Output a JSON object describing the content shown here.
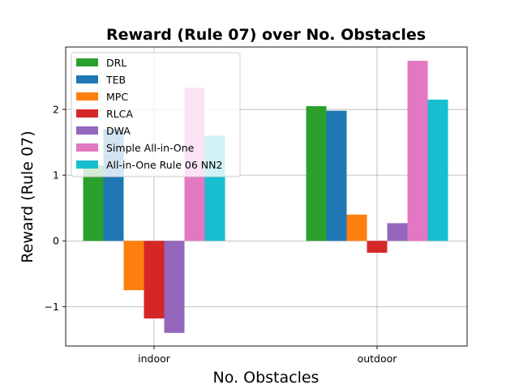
{
  "chart_data": {
    "type": "bar",
    "title": "Reward (Rule 07) over No. Obstacles",
    "xlabel": "No. Obstacles",
    "ylabel": "Reward (Rule 07)",
    "categories": [
      "indoor",
      "outdoor"
    ],
    "ylim": [
      -1.6,
      2.95
    ],
    "yticks": [
      -1,
      0,
      1,
      2
    ],
    "ytick_labels": [
      "−1",
      "0",
      "1",
      "2"
    ],
    "grid": true,
    "legend_position": "top-left",
    "series": [
      {
        "name": "DRL",
        "color": "#2ca02c",
        "values": [
          1.15,
          2.05
        ]
      },
      {
        "name": "TEB",
        "color": "#1f77b4",
        "values": [
          1.7,
          1.98
        ]
      },
      {
        "name": "MPC",
        "color": "#ff7f0e",
        "values": [
          -0.75,
          0.4
        ]
      },
      {
        "name": "RLCA",
        "color": "#d62728",
        "values": [
          -1.18,
          -0.18
        ]
      },
      {
        "name": "DWA",
        "color": "#9467bd",
        "values": [
          -1.4,
          0.27
        ]
      },
      {
        "name": "Simple All-in-One",
        "color": "#e377c2",
        "values": [
          2.33,
          2.74
        ]
      },
      {
        "name": "All-in-One Rule 06 NN2",
        "color": "#17becf",
        "values": [
          1.6,
          2.15
        ]
      }
    ]
  }
}
